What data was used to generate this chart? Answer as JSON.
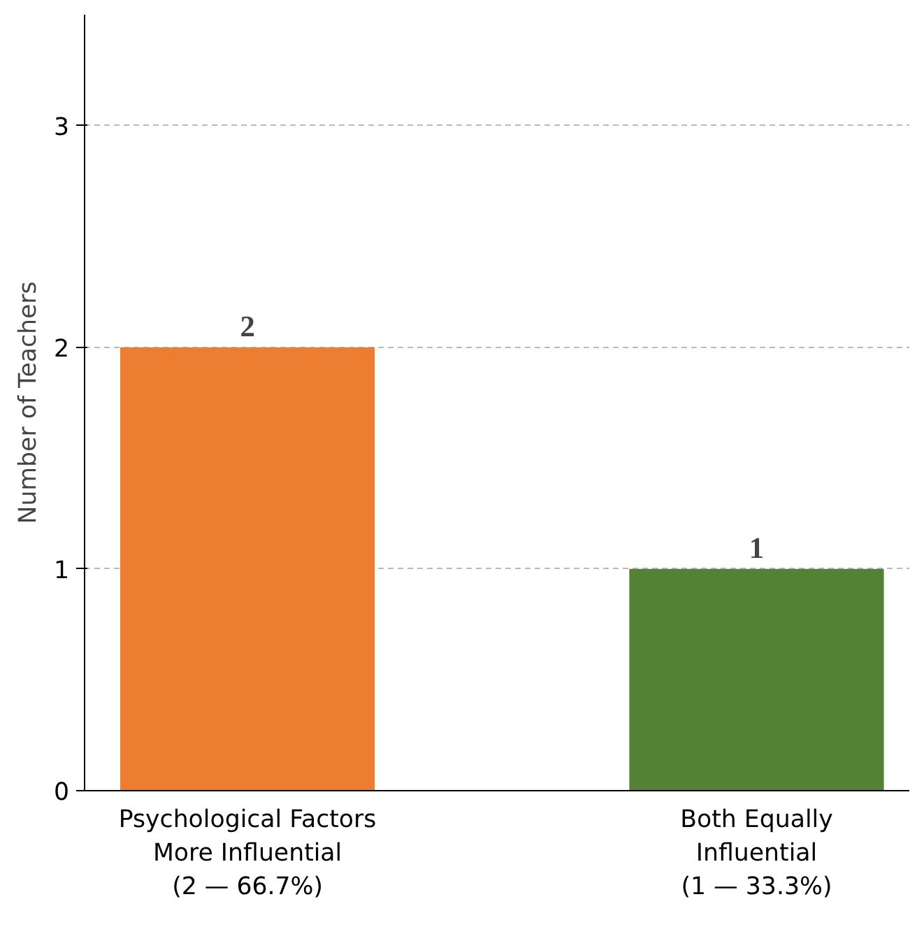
{
  "chart_data": {
    "type": "bar",
    "ylabel": "Number of Teachers",
    "categories": [
      "Psychological Factors\nMore Influential\n(2 — 66.7%)",
      "Both Equally\nInfluential\n(1 — 33.3%)"
    ],
    "values": [
      2,
      1
    ],
    "colors": [
      "#ed7d31",
      "#548235"
    ],
    "ylim": [
      0,
      3.5
    ],
    "yticks": [
      0,
      1,
      2,
      3
    ],
    "grid": "y",
    "data_labels": true
  }
}
